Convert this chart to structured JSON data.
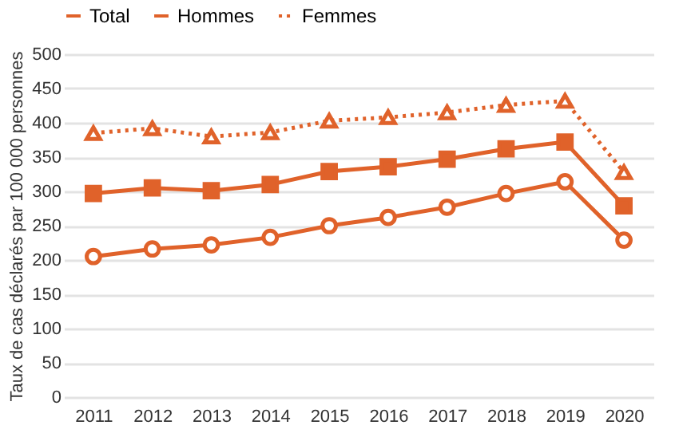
{
  "chart_data": {
    "type": "line",
    "ylabel": "Taux de cas déclarés par 100 000 personnes",
    "categories": [
      "2011",
      "2012",
      "2013",
      "2014",
      "2015",
      "2016",
      "2017",
      "2018",
      "2019",
      "2020"
    ],
    "series": [
      {
        "name": "Total",
        "color": "#e0622a",
        "marker": "square",
        "line_style": "solid",
        "values": [
          297,
          305,
          301,
          310,
          329,
          336,
          347,
          362,
          372,
          279
        ]
      },
      {
        "name": "Hommes",
        "color": "#e0622a",
        "marker": "circle",
        "line_style": "solid",
        "values": [
          205,
          216,
          222,
          233,
          250,
          262,
          277,
          297,
          314,
          229
        ]
      },
      {
        "name": "Femmes",
        "color": "#e0622a",
        "marker": "triangle",
        "line_style": "dotted",
        "values": [
          385,
          392,
          380,
          386,
          403,
          408,
          415,
          426,
          432,
          328
        ]
      }
    ],
    "ylim": [
      0,
      500
    ],
    "yticks": [
      0,
      50,
      100,
      150,
      200,
      250,
      300,
      350,
      400,
      450,
      500
    ],
    "grid": "y",
    "legend": "top"
  }
}
